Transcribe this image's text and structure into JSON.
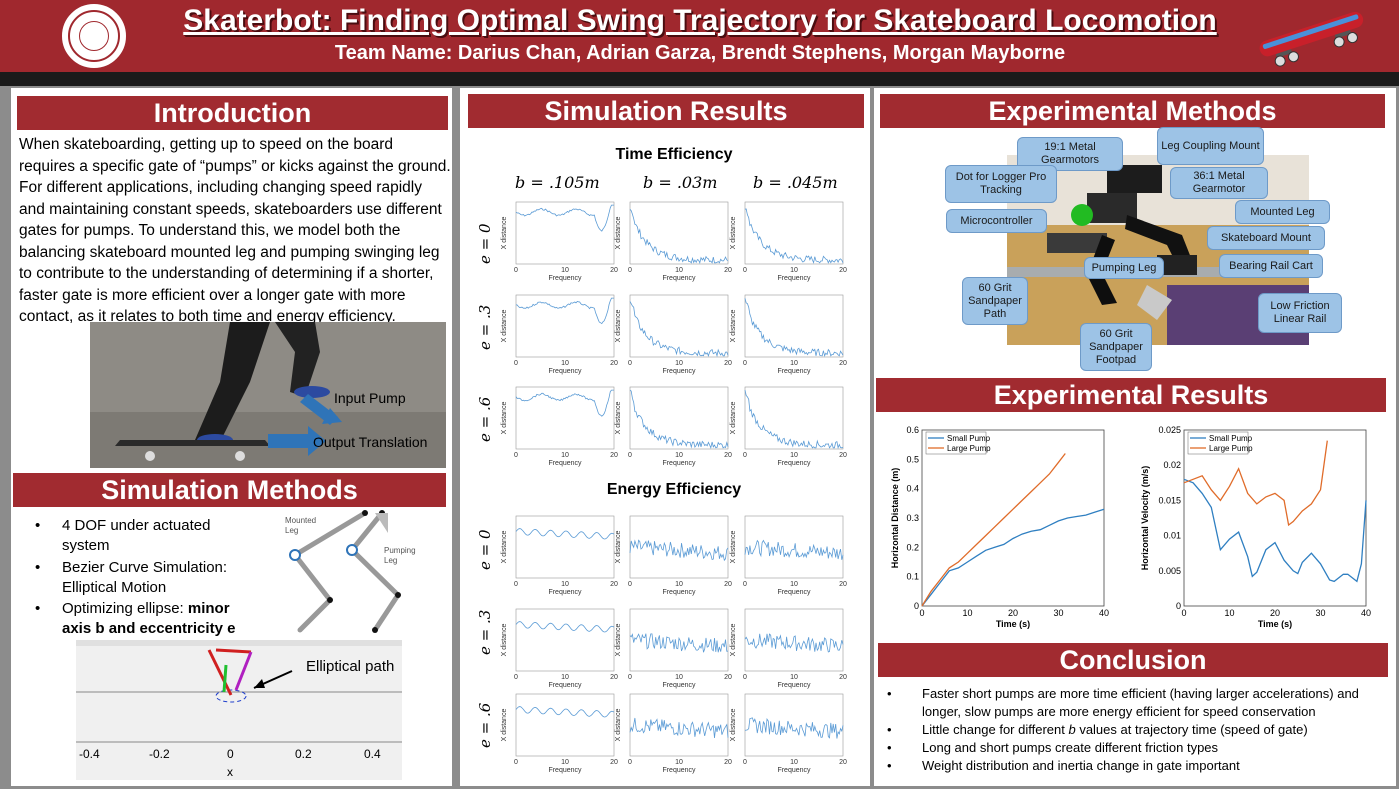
{
  "header": {
    "title": "Skaterbot: Finding Optimal Swing Trajectory for Skateboard Locomotion",
    "team": "Team Name: Darius Chan, Adrian Garza, Brendt Stephens, Morgan Mayborne"
  },
  "intro": {
    "title": "Introduction",
    "body": "When skateboarding, getting up to speed on the board requires a specific gate of “pumps” or kicks against the ground. For different applications, including changing speed rapidly and maintaining constant speeds, skateboarders use different gates for pumps. To understand this, we model both the balancing skateboard mounted leg and pumping swinging leg to contribute to the understanding of determining if a shorter, faster gate is more efficient over a longer gate with more contact, as it relates to both time and energy efficiency.",
    "input_label": "Input Pump",
    "output_label": "Output Translation"
  },
  "sim_methods": {
    "title": "Simulation Methods",
    "bullets": [
      "4 DOF under actuated system",
      "Bezier Curve Simulation: Elliptical Motion"
    ],
    "bullet3_pre": "Optimizing ellipse: ",
    "bullet3_bold": "minor axis b and eccentricity e",
    "mounted_leg": "Mounted Leg",
    "pumping_leg": "Pumping Leg",
    "path_label": "Elliptical path",
    "x_ticks": [
      "-0.4",
      "-0.2",
      "0",
      "0.2",
      "0.4"
    ],
    "x_label": "x"
  },
  "sim_results": {
    "title": "Simulation Results",
    "time_title": "Time Efficiency",
    "energy_title": "Energy Efficiency",
    "cols": [
      "b = .105m",
      "b = .03m",
      "b = .045m"
    ],
    "rows": [
      "e = 0",
      "e = .3",
      "e = .6"
    ],
    "xlabel": "Frequency",
    "ylabel": "X distance",
    "xticks": [
      "0",
      "10",
      "20"
    ]
  },
  "exp_methods": {
    "title": "Experimental Methods",
    "callouts": [
      "19:1 Metal Gearmotors",
      "Leg Coupling Mount",
      "Dot for Logger Pro Tracking",
      "36:1 Metal Gearmotor",
      "Microcontroller",
      "Mounted Leg",
      "Skateboard Mount",
      "Pumping Leg",
      "Bearing Rail Cart",
      "60 Grit Sandpaper Path",
      "Low Friction Linear Rail",
      "60 Grit Sandpaper Footpad"
    ]
  },
  "exp_results": {
    "title": "Experimental Results"
  },
  "chart_data": [
    {
      "type": "line",
      "xlabel": "Time (s)",
      "ylabel": "Horizontal Distance (m)",
      "xlim": [
        0,
        40
      ],
      "ylim": [
        0,
        0.6
      ],
      "xticks": [
        "0",
        "10",
        "20",
        "30",
        "40"
      ],
      "yticks": [
        "0",
        "0.1",
        "0.2",
        "0.3",
        "0.4",
        "0.5",
        "0.6"
      ],
      "legend": "top-left",
      "series": [
        {
          "name": "Small Pump",
          "color": "#2f7fc1",
          "x": [
            0,
            2,
            4,
            6,
            8,
            10,
            12,
            14,
            16,
            18,
            20,
            22,
            24,
            26,
            28,
            30,
            32,
            34,
            36,
            38,
            40
          ],
          "y": [
            0.0,
            0.04,
            0.08,
            0.12,
            0.13,
            0.15,
            0.17,
            0.19,
            0.2,
            0.21,
            0.23,
            0.245,
            0.255,
            0.26,
            0.275,
            0.29,
            0.3,
            0.305,
            0.31,
            0.32,
            0.33
          ]
        },
        {
          "name": "Large Pump",
          "color": "#e06c2a",
          "x": [
            0,
            2,
            4,
            6,
            8,
            10,
            12,
            14,
            16,
            18,
            20,
            22,
            24,
            26,
            28,
            30,
            31.5
          ],
          "y": [
            0.0,
            0.05,
            0.09,
            0.13,
            0.15,
            0.18,
            0.21,
            0.24,
            0.27,
            0.3,
            0.33,
            0.36,
            0.39,
            0.42,
            0.45,
            0.49,
            0.52
          ]
        }
      ]
    },
    {
      "type": "line",
      "xlabel": "Time (s)",
      "ylabel": "Horizontal Velocity (m/s)",
      "xlim": [
        0,
        40
      ],
      "ylim": [
        0,
        0.025
      ],
      "xticks": [
        "0",
        "10",
        "20",
        "30",
        "40"
      ],
      "yticks": [
        "0",
        "0.005",
        "0.01",
        "0.015",
        "0.02",
        "0.025"
      ],
      "legend": "top-left",
      "series": [
        {
          "name": "Small Pump",
          "color": "#2f7fc1",
          "x": [
            0,
            2,
            4,
            6,
            8,
            10,
            12,
            14,
            15,
            16,
            18,
            20,
            22,
            24,
            25,
            26,
            28,
            30,
            32,
            33,
            35,
            36,
            38,
            39,
            40
          ],
          "y": [
            0.018,
            0.0175,
            0.016,
            0.014,
            0.008,
            0.0095,
            0.0105,
            0.007,
            0.0042,
            0.0048,
            0.008,
            0.009,
            0.0065,
            0.005,
            0.0046,
            0.0062,
            0.0075,
            0.006,
            0.0037,
            0.0035,
            0.0045,
            0.0045,
            0.0035,
            0.006,
            0.015
          ]
        },
        {
          "name": "Large Pump",
          "color": "#e06c2a",
          "x": [
            0,
            2,
            4,
            6,
            8,
            10,
            12,
            14,
            16,
            18,
            20,
            22,
            23,
            24,
            26,
            28,
            30,
            31.5
          ],
          "y": [
            0.0175,
            0.018,
            0.0185,
            0.0165,
            0.015,
            0.017,
            0.0195,
            0.016,
            0.0145,
            0.0155,
            0.016,
            0.015,
            0.0115,
            0.012,
            0.0135,
            0.0145,
            0.0165,
            0.0235
          ]
        }
      ]
    }
  ],
  "conclusion": {
    "title": "Conclusion",
    "bullets": [
      "Faster short pumps are more time efficient (having larger accelerations) and longer, slow pumps are more energy efficient for speed conservation"
    ],
    "b2_pre": "Little change for different ",
    "b2_var": "b",
    "b2_post": " values at trajectory time (speed of gate)",
    "b3": "Long and short pumps create different friction types",
    "b4": "Weight distribution and inertia change in gate important"
  }
}
